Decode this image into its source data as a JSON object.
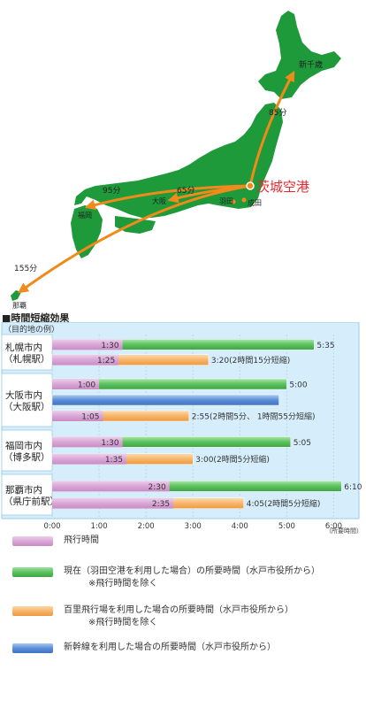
{
  "map": {
    "airport_name": "茨城空港",
    "places": {
      "shin_chitose": "新千歳",
      "haneda": "羽田",
      "narita": "成田",
      "osaka": "大阪",
      "fukuoka": "福岡",
      "naha": "那覇"
    },
    "routes": [
      {
        "name": "shin-chitose",
        "duration": "85分"
      },
      {
        "name": "osaka",
        "duration": "65分"
      },
      {
        "name": "fukuoka",
        "duration": "95分"
      },
      {
        "name": "naha",
        "duration": "155分"
      }
    ],
    "colors": {
      "land": "#1e9a3a",
      "route": "#f08a1a",
      "airport_text": "#e6282e"
    }
  },
  "section_title": "■時間短縮効果",
  "chart_data": {
    "type": "bar",
    "orientation": "horizontal",
    "header_label": "（目的地の例）",
    "x_unit_label": "（所要時間）",
    "xlim": [
      0,
      6.5
    ],
    "x_ticks": [
      "0:00",
      "1:00",
      "2:00",
      "3:00",
      "4:00",
      "5:00",
      "6:00"
    ],
    "grid": true,
    "groups": [
      {
        "label_line1": "札幌市内",
        "label_line2": "（札幌駅）",
        "bars": [
          {
            "kind": "current",
            "total": 5.5833,
            "flight": 1.5,
            "flight_label": "1:30",
            "total_label": "5:35"
          },
          {
            "kind": "hyakuri",
            "total": 3.3333,
            "flight": 1.4167,
            "flight_label": "1:25",
            "total_label": "3:20(2時間15分短縮)"
          }
        ]
      },
      {
        "label_line1": "大阪市内",
        "label_line2": "（大阪駅）",
        "bars": [
          {
            "kind": "current",
            "total": 5.0,
            "flight": 1.0,
            "flight_label": "1:00",
            "total_label": "5:00"
          },
          {
            "kind": "shinkansen",
            "total": 4.8333,
            "flight": 0,
            "flight_label": "",
            "total_label": ""
          },
          {
            "kind": "hyakuri",
            "total": 2.9167,
            "flight": 1.0833,
            "flight_label": "1:05",
            "total_label": "2:55(2時間5分、 1時間55分短縮)"
          }
        ]
      },
      {
        "label_line1": "福岡市内",
        "label_line2": "（博多駅）",
        "bars": [
          {
            "kind": "current",
            "total": 5.0833,
            "flight": 1.5,
            "flight_label": "1:30",
            "total_label": "5:05"
          },
          {
            "kind": "hyakuri",
            "total": 3.0,
            "flight": 1.5833,
            "flight_label": "1:35",
            "total_label": "3:00(2時間5分短縮)"
          }
        ]
      },
      {
        "label_line1": "那覇市内",
        "label_line2": "（県庁前駅）",
        "bars": [
          {
            "kind": "current",
            "total": 6.1667,
            "flight": 2.5,
            "flight_label": "2:30",
            "total_label": "6:10"
          },
          {
            "kind": "hyakuri",
            "total": 4.0833,
            "flight": 2.5833,
            "flight_label": "2:35",
            "total_label": "4:05(2時間5分短縮)"
          }
        ]
      }
    ],
    "colors": {
      "flight": "#d9a6d6",
      "current": "#5cc25f",
      "hyakuri": "#f7b56a",
      "shinkansen": "#5b8ed8",
      "panel_bg": "#d6eefb",
      "group_bg": "#ffffff"
    }
  },
  "legend": [
    {
      "kind": "flight",
      "text": "飛行時間",
      "note": ""
    },
    {
      "kind": "current",
      "text": "現在（羽田空港を利用した場合）の所要時間（水戸市役所から）",
      "note": "※飛行時間を除く"
    },
    {
      "kind": "hyakuri",
      "text": "百里飛行場を利用した場合の所要時間（水戸市役所から）",
      "note": "※飛行時間を除く"
    },
    {
      "kind": "shinkansen",
      "text": "新幹線を利用した場合の所要時間（水戸市役所から）",
      "note": ""
    }
  ]
}
